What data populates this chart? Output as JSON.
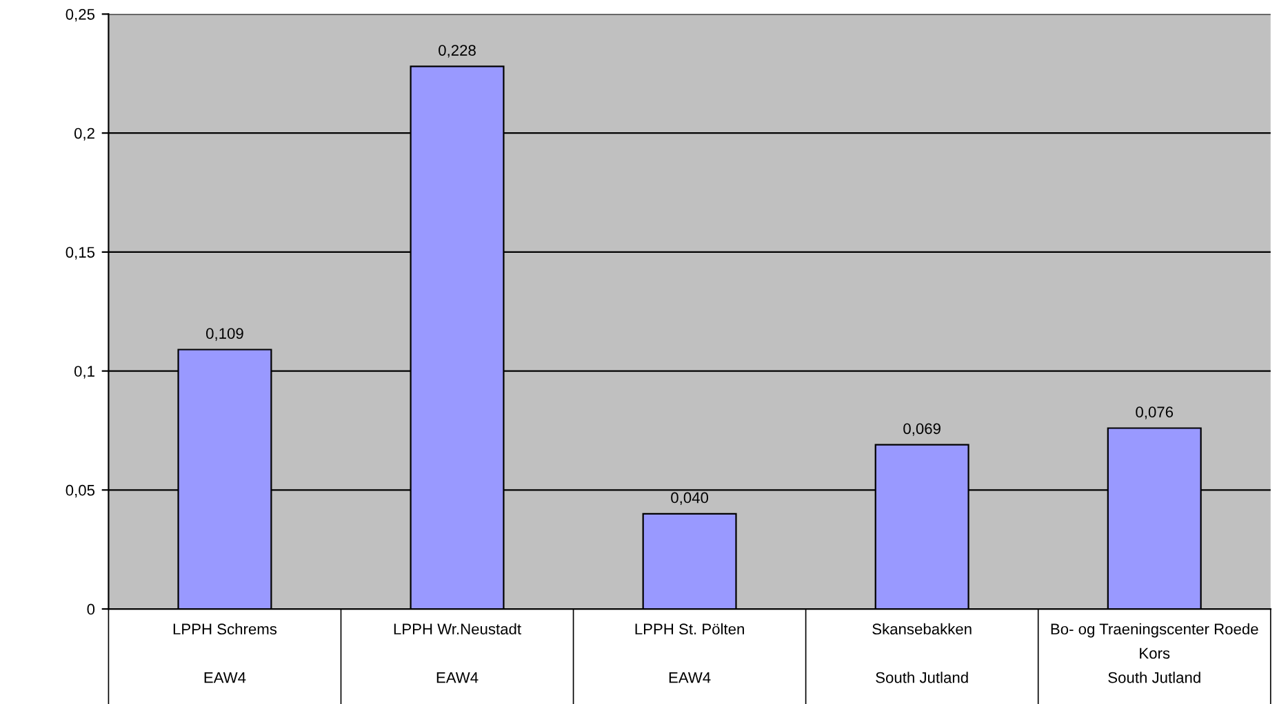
{
  "chart_data": {
    "type": "bar",
    "categories": [
      "LPPH Schrems\n\nEAW4",
      "LPPH Wr.Neustadt\n\nEAW4",
      "LPPH St. Pölten\n\nEAW4",
      "Skansebakken\n\nSouth Jutland",
      "Bo- og Traeningscenter Roede\nKors\nSouth Jutland"
    ],
    "values": [
      0.109,
      0.228,
      0.04,
      0.069,
      0.076
    ],
    "value_labels": [
      "0,109",
      "0,228",
      "0,040",
      "0,069",
      "0,076"
    ],
    "color": "#9999ff",
    "ylim": [
      0,
      0.25
    ],
    "yticks": [
      {
        "value": 0,
        "label": "0"
      },
      {
        "value": 0.05,
        "label": "0,05"
      },
      {
        "value": 0.1,
        "label": "0,1"
      },
      {
        "value": 0.15,
        "label": "0,15"
      },
      {
        "value": 0.2,
        "label": "0,2"
      },
      {
        "value": 0.25,
        "label": "0,25"
      }
    ],
    "grid": "y",
    "legend": false
  }
}
